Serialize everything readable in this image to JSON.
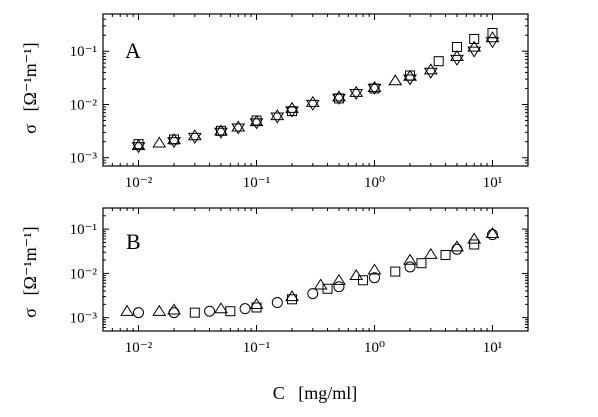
{
  "chart_data": [
    {
      "type": "scatter",
      "panel_label": "A",
      "title": "",
      "xlabel": "",
      "ylabel_symbol": "σ",
      "ylabel_unit": "[Ω⁻¹m⁻¹]",
      "xscale": "log",
      "yscale": "log",
      "xlim": [
        0.005,
        20
      ],
      "ylim": [
        0.0007,
        0.5
      ],
      "xticks": [
        0.01,
        0.1,
        1,
        10
      ],
      "xtick_labels": [
        "10⁻²",
        "10⁻¹",
        "10⁰",
        "10¹"
      ],
      "yticks": [
        0.001,
        0.01,
        0.1
      ],
      "ytick_labels": [
        "10⁻³",
        "10⁻²",
        "10⁻¹"
      ],
      "grid": false,
      "legend": "none",
      "series": [
        {
          "marker": "square",
          "x": [
            0.01,
            0.02,
            0.05,
            0.1,
            0.2,
            0.5,
            1.0,
            2.0,
            3.5,
            5.0,
            7.0,
            10.0
          ],
          "y": [
            0.0018,
            0.0022,
            0.0032,
            0.005,
            0.0075,
            0.013,
            0.02,
            0.035,
            0.065,
            0.12,
            0.17,
            0.22
          ]
        },
        {
          "marker": "triangle-up",
          "x": [
            0.01,
            0.015,
            0.02,
            0.03,
            0.05,
            0.07,
            0.1,
            0.15,
            0.2,
            0.3,
            0.5,
            0.7,
            1.0,
            1.5,
            2.0,
            3.0,
            5.0,
            7.0,
            10.0
          ],
          "y": [
            0.0017,
            0.0019,
            0.0022,
            0.0026,
            0.0032,
            0.0038,
            0.0048,
            0.0062,
            0.0085,
            0.011,
            0.014,
            0.017,
            0.021,
            0.028,
            0.034,
            0.045,
            0.08,
            0.12,
            0.18
          ]
        },
        {
          "marker": "triangle-down",
          "x": [
            0.01,
            0.02,
            0.03,
            0.05,
            0.07,
            0.1,
            0.15,
            0.2,
            0.3,
            0.5,
            0.7,
            1.0,
            2.0,
            3.0,
            5.0,
            7.0,
            10.0
          ],
          "y": [
            0.0016,
            0.002,
            0.0024,
            0.003,
            0.0036,
            0.0045,
            0.0058,
            0.0075,
            0.01,
            0.013,
            0.016,
            0.02,
            0.03,
            0.04,
            0.07,
            0.1,
            0.15
          ]
        }
      ]
    },
    {
      "type": "scatter",
      "panel_label": "B",
      "title": "",
      "xlabel": "C   [mg/ml]",
      "ylabel_symbol": "σ",
      "ylabel_unit": "[Ω⁻¹m⁻¹]",
      "xscale": "log",
      "yscale": "log",
      "xlim": [
        0.005,
        20
      ],
      "ylim": [
        0.0005,
        0.3
      ],
      "xticks": [
        0.01,
        0.1,
        1,
        10
      ],
      "xtick_labels": [
        "10⁻²",
        "10⁻¹",
        "10⁰",
        "10¹"
      ],
      "yticks": [
        0.001,
        0.01,
        0.1
      ],
      "ytick_labels": [
        "10⁻³",
        "10⁻²",
        "10⁻¹"
      ],
      "grid": false,
      "legend": "none",
      "series": [
        {
          "marker": "triangle-up",
          "x": [
            0.008,
            0.015,
            0.02,
            0.05,
            0.1,
            0.2,
            0.35,
            0.5,
            0.7,
            1.0,
            2.0,
            3.0,
            5.0,
            7.0,
            10.0
          ],
          "y": [
            0.0014,
            0.0014,
            0.0015,
            0.0016,
            0.002,
            0.003,
            0.0055,
            0.007,
            0.009,
            0.012,
            0.02,
            0.027,
            0.04,
            0.06,
            0.08
          ]
        },
        {
          "marker": "circle",
          "x": [
            0.01,
            0.02,
            0.04,
            0.08,
            0.15,
            0.3,
            0.5,
            1.0,
            2.0,
            5.0,
            10.0
          ],
          "y": [
            0.0013,
            0.0013,
            0.0014,
            0.0016,
            0.0022,
            0.0035,
            0.005,
            0.008,
            0.014,
            0.035,
            0.075
          ]
        },
        {
          "marker": "square",
          "x": [
            0.03,
            0.06,
            0.1,
            0.2,
            0.4,
            0.8,
            1.5,
            2.5,
            4.0,
            7.0
          ],
          "y": [
            0.0013,
            0.0014,
            0.0017,
            0.0026,
            0.0045,
            0.007,
            0.011,
            0.017,
            0.026,
            0.045
          ]
        }
      ]
    }
  ]
}
